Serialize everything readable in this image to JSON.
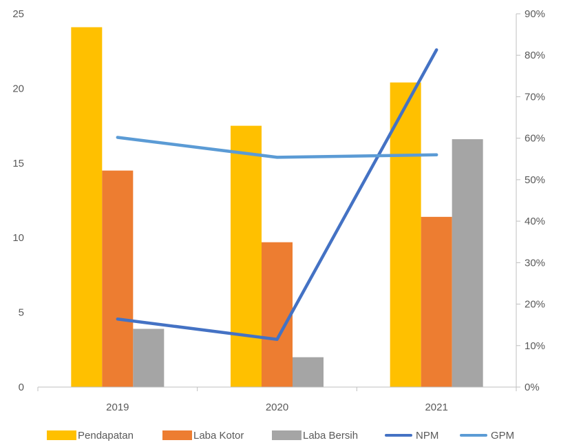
{
  "chart_data": {
    "type": "bar",
    "categories": [
      "2019",
      "2020",
      "2021"
    ],
    "series": [
      {
        "name": "Pendapatan",
        "kind": "bar",
        "axis": "left",
        "color": "#FFC000",
        "values": [
          24.1,
          17.5,
          20.4
        ]
      },
      {
        "name": "Laba Kotor",
        "kind": "bar",
        "axis": "left",
        "color": "#ED7D31",
        "values": [
          14.5,
          9.7,
          11.4
        ]
      },
      {
        "name": "Laba Bersih",
        "kind": "bar",
        "axis": "left",
        "color": "#A5A5A5",
        "values": [
          3.9,
          2.0,
          16.6
        ]
      },
      {
        "name": "NPM",
        "kind": "line",
        "axis": "right",
        "color": "#4472C4",
        "values": [
          16.4,
          11.5,
          81.3
        ]
      },
      {
        "name": "GPM",
        "kind": "line",
        "axis": "right",
        "color": "#5B9BD5",
        "values": [
          60.2,
          55.4,
          56.0
        ]
      }
    ],
    "ylim": [
      0,
      25
    ],
    "yticks": [
      "0",
      "5",
      "10",
      "15",
      "20",
      "25"
    ],
    "y2lim": [
      0,
      90
    ],
    "y2ticks": [
      "0%",
      "10%",
      "20%",
      "30%",
      "40%",
      "50%",
      "60%",
      "70%",
      "80%",
      "90%"
    ],
    "legend_position": "bottom",
    "grid": false
  }
}
